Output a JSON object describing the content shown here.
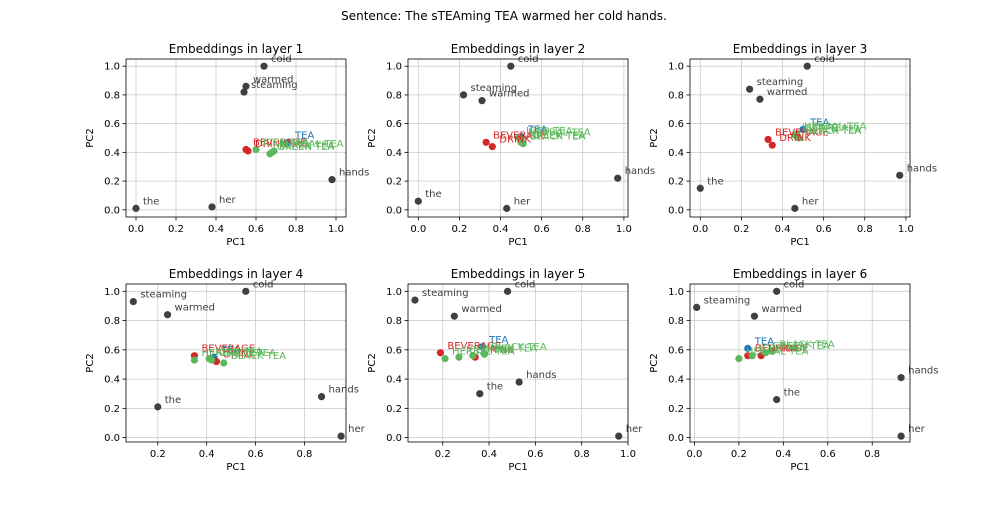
{
  "suptitle": "Sentence: The sTEAming TEA warmed her cold hands.",
  "colors": {
    "grid": "#cccccc",
    "word": "#404040",
    "tea": "#1f77b4",
    "beverage": "#d62728",
    "tea_group": "#5cb85c"
  },
  "chart_data": [
    {
      "type": "scatter",
      "title": "Embeddings in layer 1",
      "xlabel": "PC1",
      "ylabel": "PC2",
      "xlim": [
        -0.05,
        1.05
      ],
      "ylim": [
        -0.05,
        1.05
      ],
      "xticks": [
        0.0,
        0.2,
        0.4,
        0.6,
        0.8,
        1.0
      ],
      "yticks": [
        0.0,
        0.2,
        0.4,
        0.6,
        0.8,
        1.0
      ],
      "xticklabels": [
        "0.0",
        "0.2",
        "0.4",
        "0.6",
        "0.8",
        "1.0"
      ],
      "yticklabels": [
        "0.0",
        "0.2",
        "0.4",
        "0.6",
        "0.8",
        "1.0"
      ],
      "grid": true,
      "points": [
        {
          "label": "the",
          "x": 0.0,
          "y": 0.01,
          "color": "#404040"
        },
        {
          "label": "her",
          "x": 0.38,
          "y": 0.02,
          "color": "#404040"
        },
        {
          "label": "hands",
          "x": 0.98,
          "y": 0.21,
          "color": "#404040"
        },
        {
          "label": "cold",
          "x": 0.64,
          "y": 1.0,
          "color": "#404040"
        },
        {
          "label": "warmed",
          "x": 0.55,
          "y": 0.86,
          "color": "#404040"
        },
        {
          "label": "steaming",
          "x": 0.54,
          "y": 0.82,
          "color": "#404040"
        },
        {
          "label": "TEA",
          "x": 0.76,
          "y": 0.47,
          "color": "#1f77b4"
        },
        {
          "label": "BEVERAGE",
          "x": 0.55,
          "y": 0.42,
          "color": "#d62728"
        },
        {
          "label": "DRINK",
          "x": 0.56,
          "y": 0.41,
          "color": "#d62728"
        },
        {
          "label": "ICED TEA",
          "x": 0.6,
          "y": 0.42,
          "color": "#5cb85c"
        },
        {
          "label": "GREEN TEA",
          "x": 0.67,
          "y": 0.39,
          "color": "#5cb85c"
        },
        {
          "label": "BLACK TEA",
          "x": 0.68,
          "y": 0.4,
          "color": "#5cb85c"
        },
        {
          "label": "HERBAL TEA",
          "x": 0.69,
          "y": 0.41,
          "color": "#5cb85c"
        }
      ]
    },
    {
      "type": "scatter",
      "title": "Embeddings in layer 2",
      "xlabel": "PC1",
      "ylabel": "PC2",
      "xlim": [
        -0.05,
        1.02
      ],
      "ylim": [
        -0.05,
        1.05
      ],
      "xticks": [
        0.0,
        0.2,
        0.4,
        0.6,
        0.8,
        1.0
      ],
      "yticks": [
        0.0,
        0.2,
        0.4,
        0.6,
        0.8,
        1.0
      ],
      "xticklabels": [
        "0.0",
        "0.2",
        "0.4",
        "0.6",
        "0.8",
        "1.0"
      ],
      "yticklabels": [
        "0.0",
        "0.2",
        "0.4",
        "0.6",
        "0.8",
        "1.0"
      ],
      "grid": true,
      "points": [
        {
          "label": "the",
          "x": 0.0,
          "y": 0.06,
          "color": "#404040"
        },
        {
          "label": "her",
          "x": 0.43,
          "y": 0.01,
          "color": "#404040"
        },
        {
          "label": "hands",
          "x": 0.97,
          "y": 0.22,
          "color": "#404040"
        },
        {
          "label": "cold",
          "x": 0.45,
          "y": 1.0,
          "color": "#404040"
        },
        {
          "label": "steaming",
          "x": 0.22,
          "y": 0.8,
          "color": "#404040"
        },
        {
          "label": "warmed",
          "x": 0.31,
          "y": 0.76,
          "color": "#404040"
        },
        {
          "label": "TEA",
          "x": 0.5,
          "y": 0.51,
          "color": "#1f77b4"
        },
        {
          "label": "BEVERAGE",
          "x": 0.33,
          "y": 0.47,
          "color": "#d62728"
        },
        {
          "label": "DRINK",
          "x": 0.36,
          "y": 0.44,
          "color": "#d62728"
        },
        {
          "label": "ICED TEA",
          "x": 0.49,
          "y": 0.5,
          "color": "#5cb85c"
        },
        {
          "label": "GREEN TEA",
          "x": 0.5,
          "y": 0.47,
          "color": "#5cb85c"
        },
        {
          "label": "BLACK TEA",
          "x": 0.51,
          "y": 0.46,
          "color": "#5cb85c"
        },
        {
          "label": "HERBAL TEA",
          "x": 0.5,
          "y": 0.49,
          "color": "#5cb85c"
        }
      ]
    },
    {
      "type": "scatter",
      "title": "Embeddings in layer 3",
      "xlabel": "PC1",
      "ylabel": "PC2",
      "xlim": [
        -0.05,
        1.02
      ],
      "ylim": [
        -0.05,
        1.05
      ],
      "xticks": [
        0.0,
        0.2,
        0.4,
        0.6,
        0.8,
        1.0
      ],
      "yticks": [
        0.0,
        0.2,
        0.4,
        0.6,
        0.8,
        1.0
      ],
      "xticklabels": [
        "0.0",
        "0.2",
        "0.4",
        "0.6",
        "0.8",
        "1.0"
      ],
      "yticklabels": [
        "0.0",
        "0.2",
        "0.4",
        "0.6",
        "0.8",
        "1.0"
      ],
      "grid": true,
      "points": [
        {
          "label": "the",
          "x": 0.0,
          "y": 0.15,
          "color": "#404040"
        },
        {
          "label": "her",
          "x": 0.46,
          "y": 0.01,
          "color": "#404040"
        },
        {
          "label": "hands",
          "x": 0.97,
          "y": 0.24,
          "color": "#404040"
        },
        {
          "label": "cold",
          "x": 0.52,
          "y": 1.0,
          "color": "#404040"
        },
        {
          "label": "steaming",
          "x": 0.24,
          "y": 0.84,
          "color": "#404040"
        },
        {
          "label": "warmed",
          "x": 0.29,
          "y": 0.77,
          "color": "#404040"
        },
        {
          "label": "TEA",
          "x": 0.5,
          "y": 0.56,
          "color": "#1f77b4"
        },
        {
          "label": "BEVERAGE",
          "x": 0.33,
          "y": 0.49,
          "color": "#d62728"
        },
        {
          "label": "DRINK",
          "x": 0.35,
          "y": 0.45,
          "color": "#d62728"
        },
        {
          "label": "ICED TEA",
          "x": 0.46,
          "y": 0.52,
          "color": "#5cb85c"
        },
        {
          "label": "GREEN TEA",
          "x": 0.47,
          "y": 0.51,
          "color": "#5cb85c"
        },
        {
          "label": "BLACK TEA",
          "x": 0.48,
          "y": 0.5,
          "color": "#5cb85c"
        },
        {
          "label": "HERBAL TEA",
          "x": 0.47,
          "y": 0.53,
          "color": "#5cb85c"
        }
      ]
    },
    {
      "type": "scatter",
      "title": "Embeddings in layer 4",
      "xlabel": "PC1",
      "ylabel": "PC2",
      "xlim": [
        0.07,
        0.97
      ],
      "ylim": [
        -0.03,
        1.05
      ],
      "xticks": [
        0.2,
        0.4,
        0.6,
        0.8
      ],
      "yticks": [
        0.0,
        0.2,
        0.4,
        0.6,
        0.8,
        1.0
      ],
      "xticklabels": [
        "0.2",
        "0.4",
        "0.6",
        "0.8"
      ],
      "yticklabels": [
        "0.0",
        "0.2",
        "0.4",
        "0.6",
        "0.8",
        "1.0"
      ],
      "grid": true,
      "points": [
        {
          "label": "the",
          "x": 0.2,
          "y": 0.21,
          "color": "#404040"
        },
        {
          "label": "her",
          "x": 0.95,
          "y": 0.01,
          "color": "#404040"
        },
        {
          "label": "hands",
          "x": 0.87,
          "y": 0.28,
          "color": "#404040"
        },
        {
          "label": "cold",
          "x": 0.56,
          "y": 1.0,
          "color": "#404040"
        },
        {
          "label": "steaming",
          "x": 0.1,
          "y": 0.93,
          "color": "#404040"
        },
        {
          "label": "warmed",
          "x": 0.24,
          "y": 0.84,
          "color": "#404040"
        },
        {
          "label": "TEA",
          "x": 0.43,
          "y": 0.55,
          "color": "#1f77b4"
        },
        {
          "label": "BEVERAGE",
          "x": 0.35,
          "y": 0.56,
          "color": "#d62728"
        },
        {
          "label": "DRINK",
          "x": 0.44,
          "y": 0.52,
          "color": "#d62728"
        },
        {
          "label": "HERBAL TEA",
          "x": 0.35,
          "y": 0.53,
          "color": "#5cb85c"
        },
        {
          "label": "ICED TEA",
          "x": 0.41,
          "y": 0.54,
          "color": "#5cb85c"
        },
        {
          "label": "GREEN TEA",
          "x": 0.42,
          "y": 0.53,
          "color": "#5cb85c"
        },
        {
          "label": "BLACK TEA",
          "x": 0.47,
          "y": 0.51,
          "color": "#5cb85c"
        }
      ]
    },
    {
      "type": "scatter",
      "title": "Embeddings in layer 5",
      "xlabel": "PC1",
      "ylabel": "PC2",
      "xlim": [
        0.05,
        1.0
      ],
      "ylim": [
        -0.03,
        1.05
      ],
      "xticks": [
        0.2,
        0.4,
        0.6,
        0.8,
        1.0
      ],
      "yticks": [
        0.0,
        0.2,
        0.4,
        0.6,
        0.8,
        1.0
      ],
      "xticklabels": [
        "0.2",
        "0.4",
        "0.6",
        "0.8",
        "1.0"
      ],
      "yticklabels": [
        "0.0",
        "0.2",
        "0.4",
        "0.6",
        "0.8",
        "1.0"
      ],
      "grid": true,
      "points": [
        {
          "label": "the",
          "x": 0.36,
          "y": 0.3,
          "color": "#404040"
        },
        {
          "label": "her",
          "x": 0.96,
          "y": 0.01,
          "color": "#404040"
        },
        {
          "label": "hands",
          "x": 0.53,
          "y": 0.38,
          "color": "#404040"
        },
        {
          "label": "cold",
          "x": 0.48,
          "y": 1.0,
          "color": "#404040"
        },
        {
          "label": "steaming",
          "x": 0.08,
          "y": 0.94,
          "color": "#404040"
        },
        {
          "label": "warmed",
          "x": 0.25,
          "y": 0.83,
          "color": "#404040"
        },
        {
          "label": "TEA",
          "x": 0.37,
          "y": 0.62,
          "color": "#1f77b4"
        },
        {
          "label": "BEVERAGE",
          "x": 0.19,
          "y": 0.58,
          "color": "#d62728"
        },
        {
          "label": "DRINK",
          "x": 0.34,
          "y": 0.55,
          "color": "#d62728"
        },
        {
          "label": "HERBAL TEA",
          "x": 0.21,
          "y": 0.54,
          "color": "#5cb85c"
        },
        {
          "label": "ICED TEA",
          "x": 0.27,
          "y": 0.55,
          "color": "#5cb85c"
        },
        {
          "label": "GREEN TEA",
          "x": 0.33,
          "y": 0.56,
          "color": "#5cb85c"
        },
        {
          "label": "BLACK TEA",
          "x": 0.38,
          "y": 0.57,
          "color": "#5cb85c"
        }
      ]
    },
    {
      "type": "scatter",
      "title": "Embeddings in layer 6",
      "xlabel": "PC1",
      "ylabel": "PC2",
      "xlim": [
        -0.02,
        0.97
      ],
      "ylim": [
        -0.03,
        1.05
      ],
      "xticks": [
        0.0,
        0.2,
        0.4,
        0.6,
        0.8
      ],
      "yticks": [
        0.0,
        0.2,
        0.4,
        0.6,
        0.8,
        1.0
      ],
      "xticklabels": [
        "0.0",
        "0.2",
        "0.4",
        "0.6",
        "0.8"
      ],
      "yticklabels": [
        "0.0",
        "0.2",
        "0.4",
        "0.6",
        "0.8",
        "1.0"
      ],
      "grid": true,
      "points": [
        {
          "label": "the",
          "x": 0.37,
          "y": 0.26,
          "color": "#404040"
        },
        {
          "label": "her",
          "x": 0.93,
          "y": 0.01,
          "color": "#404040"
        },
        {
          "label": "hands",
          "x": 0.93,
          "y": 0.41,
          "color": "#404040"
        },
        {
          "label": "cold",
          "x": 0.37,
          "y": 1.0,
          "color": "#404040"
        },
        {
          "label": "steaming",
          "x": 0.01,
          "y": 0.89,
          "color": "#404040"
        },
        {
          "label": "warmed",
          "x": 0.27,
          "y": 0.83,
          "color": "#404040"
        },
        {
          "label": "TEA",
          "x": 0.24,
          "y": 0.61,
          "color": "#1f77b4"
        },
        {
          "label": "BEVERAGE",
          "x": 0.24,
          "y": 0.56,
          "color": "#d62728"
        },
        {
          "label": "DRINK",
          "x": 0.3,
          "y": 0.56,
          "color": "#d62728"
        },
        {
          "label": "HERBAL TEA",
          "x": 0.2,
          "y": 0.54,
          "color": "#5cb85c"
        },
        {
          "label": "ICED TEA",
          "x": 0.26,
          "y": 0.56,
          "color": "#5cb85c"
        },
        {
          "label": "GREEN TEA",
          "x": 0.32,
          "y": 0.58,
          "color": "#5cb85c"
        },
        {
          "label": "BLACK TEA",
          "x": 0.35,
          "y": 0.59,
          "color": "#5cb85c"
        }
      ]
    }
  ]
}
